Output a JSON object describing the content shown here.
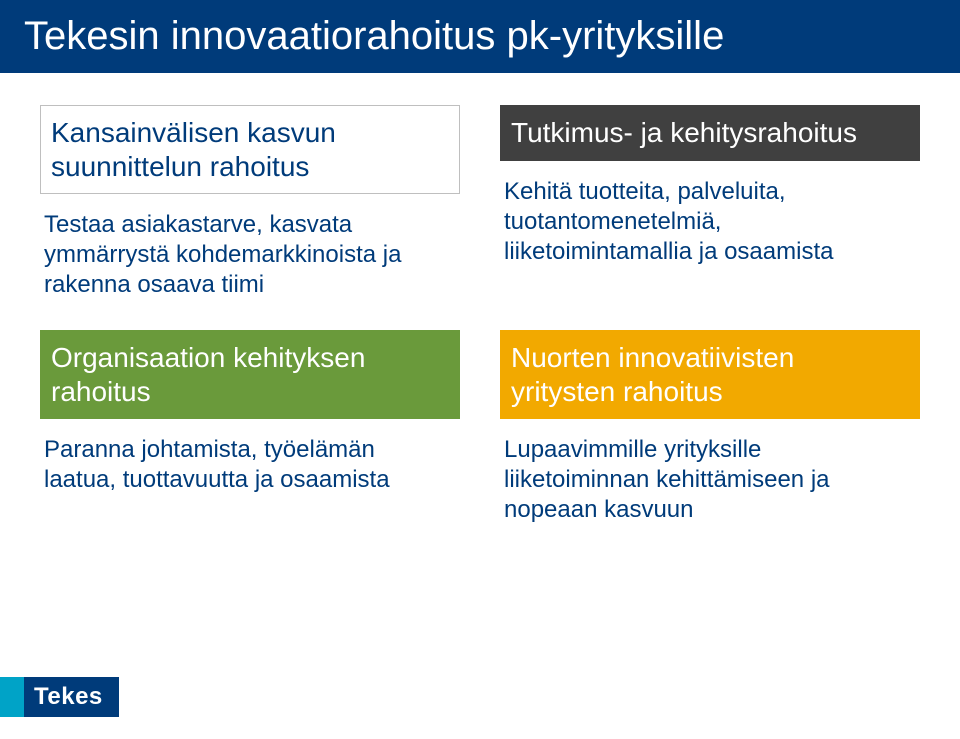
{
  "title": "Tekesin innovaatiorahoitus pk-yrityksille",
  "blocks": {
    "topLeft": {
      "heading": "Kansainvälisen kasvun suunnittelun rahoitus",
      "desc": "Testaa asiakastarve, kasvata ymmärrystä kohdemarkkinoista ja rakenna osaava tiimi"
    },
    "topRight": {
      "heading": "Tutkimus- ja kehitysrahoitus",
      "desc": "Kehitä tuotteita, palveluita, tuotantomenetelmiä, liiketoimintamallia ja osaamista"
    },
    "bottomLeft": {
      "heading": "Organisaation kehityksen  rahoitus",
      "desc": "Paranna johtamista, työelämän laatua, tuottavuutta ja osaamista"
    },
    "bottomRight": {
      "heading": "Nuorten innovatiivisten yritysten rahoitus",
      "desc": "Lupaavimmille yrityksille liiketoiminnan kehittämiseen ja nopeaan kasvuun"
    }
  },
  "brand": "Tekes",
  "colors": {
    "blue": "#003b7a",
    "dark": "#404040",
    "green": "#6a9a3b",
    "orange": "#f2a900",
    "cyan": "#00a3c7",
    "white": "#ffffff"
  }
}
